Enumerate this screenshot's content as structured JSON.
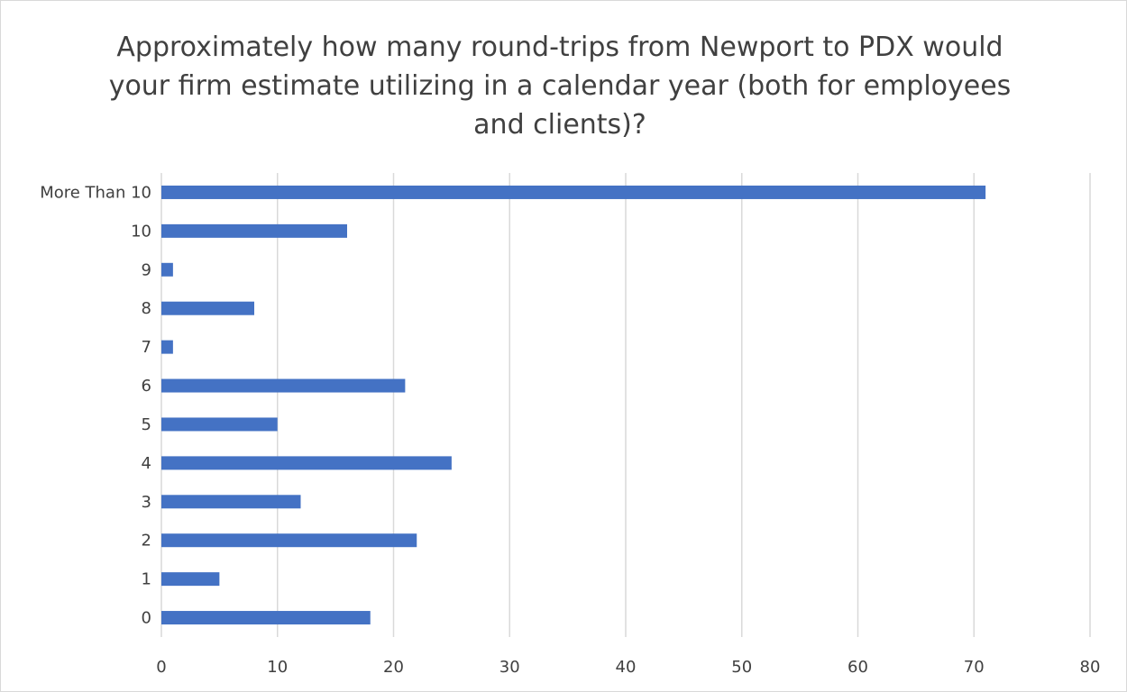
{
  "chart_data": {
    "type": "bar",
    "orientation": "horizontal",
    "title": "Approximately how many round-trips from Newport to PDX would your firm estimate utilizing in a calendar year (both for employees and clients)?",
    "categories": [
      "0",
      "1",
      "2",
      "3",
      "4",
      "5",
      "6",
      "7",
      "8",
      "9",
      "10",
      "More Than 10"
    ],
    "values": [
      18,
      5,
      22,
      12,
      25,
      10,
      21,
      1,
      8,
      1,
      16,
      71
    ],
    "xlim": [
      0,
      80
    ],
    "x_ticks": [
      "0",
      "10",
      "20",
      "30",
      "40",
      "50",
      "60",
      "70",
      "80"
    ],
    "grid": "vertical",
    "legend": "none",
    "colors": {
      "bar": "#4472c4",
      "grid": "#d9d9d9",
      "text": "#404040"
    }
  }
}
